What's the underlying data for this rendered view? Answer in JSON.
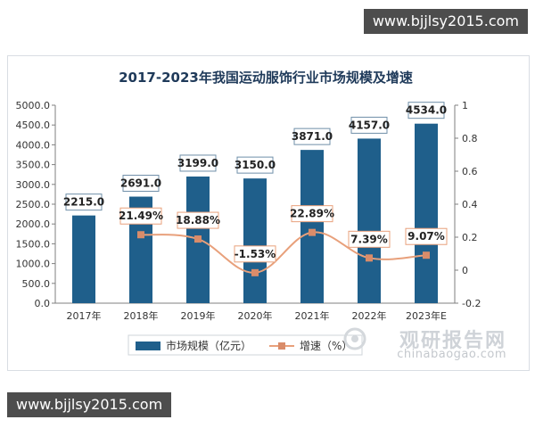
{
  "watermark_top": "www.bjjlsy2015.com",
  "watermark_bottom": "www.bjjlsy2015.com",
  "brand": {
    "name_cn": "观研报告网",
    "name_en": "chinabaogao.com"
  },
  "chart_data": {
    "type": "bar+line",
    "title": "2017-2023年我国运动服饰行业市场规模及增速",
    "categories": [
      "2017年",
      "2018年",
      "2019年",
      "2020年",
      "2021年",
      "2022年",
      "2023年E"
    ],
    "series": [
      {
        "name": "市场规模（亿元）",
        "type": "bar",
        "axis": "left",
        "values": [
          2215.0,
          2691.0,
          3199.0,
          3150.0,
          3871.0,
          4157.0,
          4534.0
        ],
        "labels": [
          "2215.0",
          "2691.0",
          "3199.0",
          "3150.0",
          "3871.0",
          "4157.0",
          "4534.0"
        ],
        "color": "#1f5f8b"
      },
      {
        "name": "增速（%）",
        "type": "line",
        "axis": "right",
        "values": [
          null,
          0.2149,
          0.1888,
          -0.0153,
          0.2289,
          0.0739,
          0.0907
        ],
        "labels": [
          "",
          "21.49%",
          "18.88%",
          "-1.53%",
          "22.89%",
          "7.39%",
          "9.07%"
        ],
        "color": "#e8a07b"
      }
    ],
    "y_left": {
      "min": 0,
      "max": 5000,
      "step": 500,
      "ticks": [
        "0.0",
        "500.0",
        "1000.0",
        "1500.0",
        "2000.0",
        "2500.0",
        "3000.0",
        "3500.0",
        "4000.0",
        "4500.0",
        "5000.0"
      ]
    },
    "y_right": {
      "min": -0.2,
      "max": 1,
      "step": 0.2,
      "ticks": [
        "-0.2",
        "0",
        "0.2",
        "0.4",
        "0.6",
        "0.8",
        "1"
      ]
    },
    "legend": {
      "placement": "bottom"
    }
  }
}
